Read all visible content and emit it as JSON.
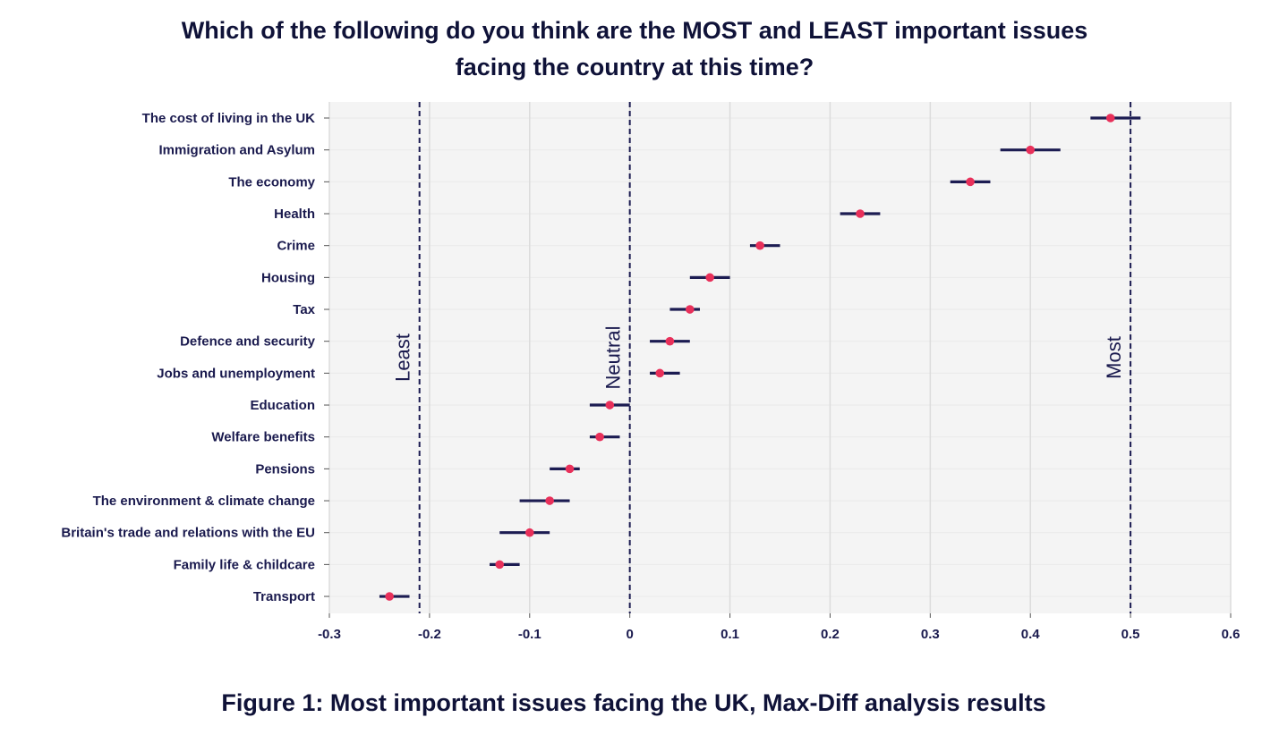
{
  "chart_data": {
    "type": "dot-errorbar",
    "title_lines": [
      "Which of the following do you think are the MOST and LEAST important issues",
      "facing the country at this time?"
    ],
    "caption": "Figure 1: Most important issues facing the UK,  Max-Diff analysis results",
    "xlim": [
      -0.3,
      0.6
    ],
    "xticks": [
      -0.3,
      -0.2,
      -0.1,
      0,
      0.1,
      0.2,
      0.3,
      0.4,
      0.5,
      0.6
    ],
    "xtick_labels": [
      "-0.3",
      "-0.2",
      "-0.1",
      "0",
      "0.1",
      "0.2",
      "0.3",
      "0.4",
      "0.5",
      "0.6"
    ],
    "grid": true,
    "reference_lines": [
      {
        "x": -0.21,
        "label": "Least"
      },
      {
        "x": 0,
        "label": "Neutral"
      },
      {
        "x": 0.5,
        "label": "Most"
      }
    ],
    "categories": [
      "The cost of living in the UK",
      "Immigration and Asylum",
      "The economy",
      "Health",
      "Crime",
      "Housing",
      "Tax",
      "Defence and security",
      "Jobs and unemployment",
      "Education",
      "Welfare benefits",
      "Pensions",
      "The environment & climate change",
      "Britain's trade and relations with the EU",
      "Family life & childcare",
      "Transport"
    ],
    "values": [
      0.48,
      0.4,
      0.34,
      0.23,
      0.13,
      0.08,
      0.06,
      0.04,
      0.03,
      -0.02,
      -0.03,
      -0.06,
      -0.08,
      -0.1,
      -0.13,
      -0.24
    ],
    "ci_low": [
      0.46,
      0.37,
      0.32,
      0.21,
      0.12,
      0.06,
      0.04,
      0.02,
      0.02,
      -0.04,
      -0.04,
      -0.08,
      -0.11,
      -0.13,
      -0.14,
      -0.25
    ],
    "ci_high": [
      0.51,
      0.43,
      0.36,
      0.25,
      0.15,
      0.1,
      0.07,
      0.06,
      0.05,
      0.0,
      -0.01,
      -0.05,
      -0.06,
      -0.08,
      -0.11,
      -0.22
    ],
    "colors": {
      "point": "#e8305a",
      "errorbar": "#1c1c52",
      "panel": "#f4f4f4",
      "grid": "#dcdcdc",
      "refline": "#1c1c52"
    }
  }
}
